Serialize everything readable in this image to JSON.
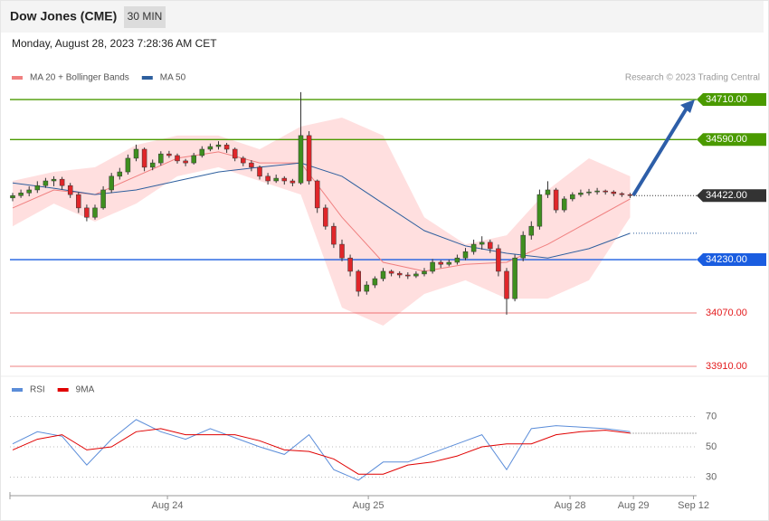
{
  "header": {
    "title": "Dow Jones (CME)",
    "timeframe": "30 MIN",
    "date": "Monday, August 28, 2023 7:28:36 AM CET",
    "copyright": "Research © 2023 Trading Central"
  },
  "chart_data": [
    {
      "type": "candlestick",
      "up_color": "#3f8f1f",
      "down_color": "#e0262a",
      "xlim": [
        0,
        83
      ],
      "ylim": [
        33880,
        34760
      ],
      "candles": [
        [
          34415,
          34430,
          34405,
          34422
        ],
        [
          34422,
          34440,
          34415,
          34430
        ],
        [
          34430,
          34450,
          34420,
          34439
        ],
        [
          34439,
          34465,
          34430,
          34452
        ],
        [
          34452,
          34475,
          34445,
          34466
        ],
        [
          34466,
          34480,
          34450,
          34471
        ],
        [
          34471,
          34478,
          34440,
          34452
        ],
        [
          34452,
          34460,
          34415,
          34425
        ],
        [
          34425,
          34432,
          34370,
          34385
        ],
        [
          34385,
          34395,
          34345,
          34357
        ],
        [
          34357,
          34395,
          34350,
          34385
        ],
        [
          34385,
          34450,
          34380,
          34439
        ],
        [
          34439,
          34490,
          34430,
          34480
        ],
        [
          34480,
          34505,
          34470,
          34493
        ],
        [
          34493,
          34545,
          34485,
          34534
        ],
        [
          34534,
          34575,
          34525,
          34561
        ],
        [
          34561,
          34566,
          34495,
          34507
        ],
        [
          34507,
          34530,
          34498,
          34520
        ],
        [
          34520,
          34555,
          34512,
          34547
        ],
        [
          34547,
          34556,
          34535,
          34542
        ],
        [
          34542,
          34548,
          34518,
          34526
        ],
        [
          34526,
          34532,
          34510,
          34520
        ],
        [
          34520,
          34550,
          34515,
          34542
        ],
        [
          34542,
          34570,
          34536,
          34561
        ],
        [
          34561,
          34578,
          34555,
          34569
        ],
        [
          34569,
          34585,
          34560,
          34574
        ],
        [
          34574,
          34580,
          34550,
          34561
        ],
        [
          34561,
          34566,
          34525,
          34534
        ],
        [
          34534,
          34540,
          34510,
          34520
        ],
        [
          34520,
          34528,
          34495,
          34507
        ],
        [
          34507,
          34512,
          34470,
          34480
        ],
        [
          34480,
          34490,
          34455,
          34466
        ],
        [
          34466,
          34485,
          34460,
          34474
        ],
        [
          34474,
          34480,
          34455,
          34466
        ],
        [
          34466,
          34472,
          34450,
          34460
        ],
        [
          34460,
          34732,
          34455,
          34602
        ],
        [
          34602,
          34615,
          34455,
          34466
        ],
        [
          34466,
          34470,
          34370,
          34385
        ],
        [
          34385,
          34395,
          34320,
          34330
        ],
        [
          34330,
          34340,
          34265,
          34276
        ],
        [
          34276,
          34290,
          34225,
          34235
        ],
        [
          34235,
          34245,
          34180,
          34195
        ],
        [
          34195,
          34200,
          34120,
          34135
        ],
        [
          34135,
          34165,
          34125,
          34154
        ],
        [
          34154,
          34180,
          34145,
          34173
        ],
        [
          34173,
          34205,
          34165,
          34195
        ],
        [
          34195,
          34200,
          34180,
          34189
        ],
        [
          34189,
          34195,
          34175,
          34184
        ],
        [
          34184,
          34192,
          34172,
          34181
        ],
        [
          34181,
          34195,
          34175,
          34187
        ],
        [
          34187,
          34205,
          34180,
          34195
        ],
        [
          34195,
          34232,
          34188,
          34222
        ],
        [
          34222,
          34228,
          34205,
          34216
        ],
        [
          34216,
          34230,
          34210,
          34222
        ],
        [
          34222,
          34245,
          34215,
          34235
        ],
        [
          34235,
          34265,
          34228,
          34254
        ],
        [
          34254,
          34290,
          34245,
          34276
        ],
        [
          34276,
          34300,
          34260,
          34282
        ],
        [
          34282,
          34290,
          34250,
          34263
        ],
        [
          34263,
          34275,
          34180,
          34195
        ],
        [
          34195,
          34205,
          34065,
          34113
        ],
        [
          34113,
          34245,
          34105,
          34235
        ],
        [
          34235,
          34315,
          34225,
          34303
        ],
        [
          34303,
          34345,
          34290,
          34330
        ],
        [
          34330,
          34440,
          34320,
          34425
        ],
        [
          34425,
          34465,
          34415,
          34439
        ],
        [
          34439,
          34445,
          34370,
          34379
        ],
        [
          34379,
          34420,
          34372,
          34412
        ],
        [
          34412,
          34432,
          34405,
          34425
        ],
        [
          34425,
          34440,
          34418,
          34430
        ],
        [
          34430,
          34442,
          34422,
          34433
        ],
        [
          34433,
          34445,
          34425,
          34436
        ],
        [
          34436,
          34440,
          34425,
          34433
        ],
        [
          34433,
          34438,
          34420,
          34428
        ],
        [
          34428,
          34432,
          34418,
          34425
        ],
        [
          34425,
          34430,
          34415,
          34422
        ]
      ],
      "x": [
        0,
        5,
        10,
        15,
        20,
        25,
        30,
        35,
        40,
        45,
        50,
        55,
        60,
        65,
        70,
        75
      ],
      "band_color": "#ffd9d9",
      "series": [
        {
          "name": "MA 20 + Bollinger Bands",
          "color": "#f08080",
          "values": [
            34385,
            34439,
            34425,
            34480,
            34534,
            34553,
            34520,
            34520,
            34357,
            34222,
            34195,
            34216,
            34222,
            34276,
            34344,
            34412
          ],
          "upper": [
            34466,
            34493,
            34507,
            34574,
            34602,
            34602,
            34561,
            34629,
            34656,
            34602,
            34357,
            34276,
            34303,
            34439,
            34534,
            34480
          ],
          "lower": [
            34330,
            34398,
            34344,
            34398,
            34480,
            34507,
            34466,
            34425,
            34086,
            34032,
            34127,
            34168,
            34113,
            34113,
            34168,
            34357
          ]
        },
        {
          "name": "MA 50",
          "color": "#2e5f9e",
          "values": [
            34460,
            34444,
            34425,
            34439,
            34466,
            34493,
            34507,
            34520,
            34480,
            34398,
            34317,
            34271,
            34249,
            34235,
            34263,
            34309
          ]
        }
      ],
      "levels": [
        {
          "value": 34710,
          "label": "34710.00",
          "color": "#4a9a00",
          "style": "tag"
        },
        {
          "value": 34590,
          "label": "34590.00",
          "color": "#4a9a00",
          "style": "tag"
        },
        {
          "value": 34422,
          "label": "34422.00",
          "color": "#333333",
          "style": "last"
        },
        {
          "value": 34230,
          "label": "34230.00",
          "color": "#1a5de0",
          "style": "tag"
        },
        {
          "value": 34070,
          "label": "34070.00",
          "color": "#e31a1c",
          "style": "text"
        },
        {
          "value": 33910,
          "label": "33910.00",
          "color": "#e31a1c",
          "style": "text"
        }
      ]
    },
    {
      "type": "line",
      "xlim": [
        0,
        83
      ],
      "ylim": [
        20,
        82
      ],
      "yticks": [
        30,
        50,
        70
      ],
      "x": [
        0,
        3,
        6,
        9,
        12,
        15,
        18,
        21,
        24,
        27,
        30,
        33,
        36,
        39,
        42,
        45,
        48,
        51,
        54,
        57,
        60,
        63,
        66,
        69,
        72,
        75
      ],
      "xticks": [
        {
          "value": 18.8,
          "label": "Aug 24"
        },
        {
          "value": 43.2,
          "label": "Aug 25"
        },
        {
          "value": 67.7,
          "label": "Aug 28"
        },
        {
          "value": 75.4,
          "label": "Aug 29"
        },
        {
          "value": 82.7,
          "label": "Sep 12"
        }
      ],
      "series": [
        {
          "name": "RSI",
          "color": "#5b8dd9",
          "values": [
            52,
            60,
            57,
            38,
            55,
            68,
            60,
            55,
            62,
            56,
            50,
            45,
            58,
            35,
            28,
            40,
            40,
            46,
            52,
            58,
            35,
            62,
            64,
            63,
            62,
            60
          ]
        },
        {
          "name": "9MA",
          "color": "#e00000",
          "values": [
            48,
            55,
            58,
            48,
            50,
            60,
            62,
            58,
            58,
            58,
            54,
            48,
            47,
            42,
            32,
            32,
            38,
            40,
            44,
            50,
            52,
            52,
            58,
            60,
            61,
            59
          ]
        }
      ]
    }
  ]
}
